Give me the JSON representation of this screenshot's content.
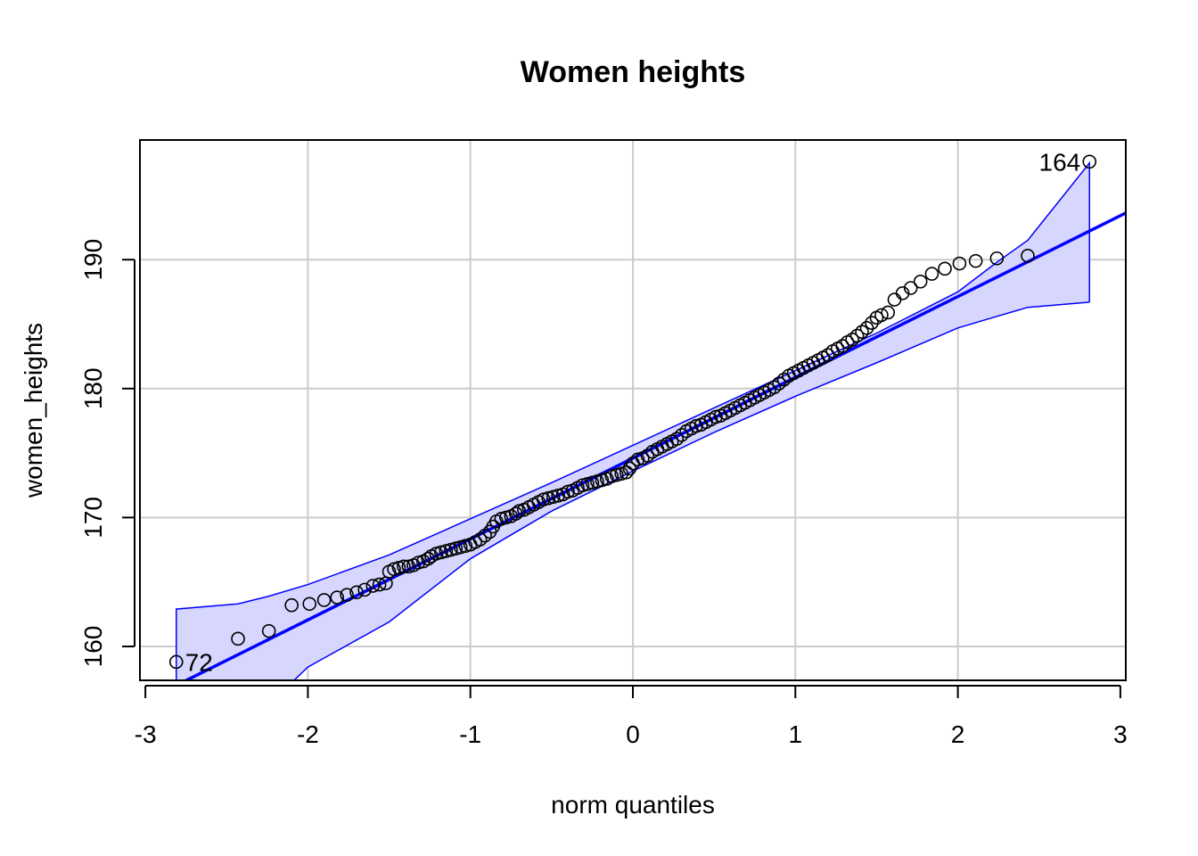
{
  "chart_data": {
    "type": "scatter",
    "title": "Women heights",
    "xlabel": "norm quantiles",
    "ylabel": "women_heights",
    "xlim": [
      -3,
      3
    ],
    "ylim": [
      157.5,
      198.5
    ],
    "x_ticks": [
      -3,
      -2,
      -1,
      0,
      1,
      2,
      3
    ],
    "y_ticks": [
      160,
      170,
      180,
      190
    ],
    "grid": true,
    "colors": {
      "points": "#000000",
      "line": "#0000ff",
      "band_fill": "#d6d6ff",
      "band_edge": "#0000ff",
      "grid": "#cccccc"
    },
    "reference_line": {
      "intercept": 174.6,
      "slope": 6.27
    },
    "confidence_band": {
      "x": [
        -2.81,
        -2.43,
        -2.24,
        -2.0,
        -1.5,
        -1.0,
        -0.5,
        0.0,
        0.5,
        1.0,
        1.5,
        2.0,
        2.24,
        2.43,
        2.81
      ],
      "upper": [
        162.9,
        163.3,
        163.9,
        164.8,
        167.1,
        169.9,
        172.7,
        175.6,
        178.5,
        181.4,
        184.3,
        187.5,
        189.8,
        191.5,
        197.5
      ],
      "lower": [
        148.5,
        150.7,
        155.5,
        158.4,
        161.9,
        166.8,
        170.5,
        173.6,
        176.6,
        179.4,
        182.0,
        184.7,
        185.6,
        186.3,
        186.7
      ]
    },
    "annotations": [
      {
        "label": "72",
        "x": -2.81,
        "y": 158.8,
        "anchor": "start"
      },
      {
        "label": "164",
        "x": 2.81,
        "y": 197.6,
        "anchor": "end"
      }
    ],
    "points": [
      [
        -2.81,
        158.8
      ],
      [
        -2.43,
        160.6
      ],
      [
        -2.24,
        161.2
      ],
      [
        -2.1,
        163.2
      ],
      [
        -1.99,
        163.3
      ],
      [
        -1.9,
        163.6
      ],
      [
        -1.82,
        163.8
      ],
      [
        -1.76,
        164.0
      ],
      [
        -1.7,
        164.2
      ],
      [
        -1.65,
        164.4
      ],
      [
        -1.6,
        164.7
      ],
      [
        -1.56,
        164.8
      ],
      [
        -1.52,
        164.9
      ],
      [
        -1.5,
        165.8
      ],
      [
        -1.47,
        166.0
      ],
      [
        -1.44,
        166.1
      ],
      [
        -1.41,
        166.2
      ],
      [
        -1.38,
        166.2
      ],
      [
        -1.35,
        166.3
      ],
      [
        -1.32,
        166.5
      ],
      [
        -1.29,
        166.6
      ],
      [
        -1.26,
        166.8
      ],
      [
        -1.24,
        167.0
      ],
      [
        -1.21,
        167.2
      ],
      [
        -1.18,
        167.3
      ],
      [
        -1.15,
        167.4
      ],
      [
        -1.12,
        167.5
      ],
      [
        -1.09,
        167.6
      ],
      [
        -1.06,
        167.7
      ],
      [
        -1.03,
        167.8
      ],
      [
        -1.0,
        167.9
      ],
      [
        -0.97,
        168.1
      ],
      [
        -0.94,
        168.3
      ],
      [
        -0.91,
        168.6
      ],
      [
        -0.88,
        168.9
      ],
      [
        -0.86,
        169.3
      ],
      [
        -0.84,
        169.7
      ],
      [
        -0.81,
        169.9
      ],
      [
        -0.78,
        170.0
      ],
      [
        -0.75,
        170.1
      ],
      [
        -0.72,
        170.3
      ],
      [
        -0.7,
        170.5
      ],
      [
        -0.67,
        170.6
      ],
      [
        -0.64,
        170.8
      ],
      [
        -0.61,
        171.0
      ],
      [
        -0.58,
        171.2
      ],
      [
        -0.55,
        171.4
      ],
      [
        -0.52,
        171.5
      ],
      [
        -0.49,
        171.6
      ],
      [
        -0.46,
        171.7
      ],
      [
        -0.43,
        171.8
      ],
      [
        -0.4,
        172.0
      ],
      [
        -0.37,
        172.1
      ],
      [
        -0.34,
        172.3
      ],
      [
        -0.31,
        172.5
      ],
      [
        -0.28,
        172.6
      ],
      [
        -0.25,
        172.7
      ],
      [
        -0.22,
        172.8
      ],
      [
        -0.19,
        172.9
      ],
      [
        -0.16,
        173.0
      ],
      [
        -0.13,
        173.2
      ],
      [
        -0.1,
        173.3
      ],
      [
        -0.07,
        173.4
      ],
      [
        -0.04,
        173.5
      ],
      [
        -0.02,
        173.8
      ],
      [
        0.0,
        174.2
      ],
      [
        0.03,
        174.5
      ],
      [
        0.06,
        174.6
      ],
      [
        0.09,
        174.8
      ],
      [
        0.12,
        175.1
      ],
      [
        0.15,
        175.3
      ],
      [
        0.18,
        175.5
      ],
      [
        0.21,
        175.7
      ],
      [
        0.24,
        175.9
      ],
      [
        0.27,
        176.1
      ],
      [
        0.3,
        176.4
      ],
      [
        0.33,
        176.7
      ],
      [
        0.36,
        176.9
      ],
      [
        0.39,
        177.1
      ],
      [
        0.42,
        177.2
      ],
      [
        0.45,
        177.4
      ],
      [
        0.48,
        177.6
      ],
      [
        0.51,
        177.8
      ],
      [
        0.54,
        177.9
      ],
      [
        0.57,
        178.1
      ],
      [
        0.6,
        178.3
      ],
      [
        0.63,
        178.5
      ],
      [
        0.66,
        178.7
      ],
      [
        0.69,
        178.9
      ],
      [
        0.72,
        179.1
      ],
      [
        0.75,
        179.3
      ],
      [
        0.78,
        179.5
      ],
      [
        0.81,
        179.7
      ],
      [
        0.84,
        179.9
      ],
      [
        0.87,
        180.1
      ],
      [
        0.9,
        180.4
      ],
      [
        0.93,
        180.7
      ],
      [
        0.96,
        181.0
      ],
      [
        0.99,
        181.2
      ],
      [
        1.02,
        181.4
      ],
      [
        1.05,
        181.6
      ],
      [
        1.08,
        181.8
      ],
      [
        1.11,
        182.0
      ],
      [
        1.14,
        182.2
      ],
      [
        1.17,
        182.4
      ],
      [
        1.2,
        182.6
      ],
      [
        1.23,
        182.9
      ],
      [
        1.26,
        183.1
      ],
      [
        1.29,
        183.3
      ],
      [
        1.32,
        183.6
      ],
      [
        1.35,
        183.8
      ],
      [
        1.38,
        184.1
      ],
      [
        1.41,
        184.4
      ],
      [
        1.44,
        184.7
      ],
      [
        1.47,
        185.1
      ],
      [
        1.5,
        185.5
      ],
      [
        1.53,
        185.7
      ],
      [
        1.57,
        185.9
      ],
      [
        1.61,
        186.9
      ],
      [
        1.66,
        187.4
      ],
      [
        1.71,
        187.8
      ],
      [
        1.77,
        188.3
      ],
      [
        1.84,
        188.9
      ],
      [
        1.92,
        189.3
      ],
      [
        2.01,
        189.7
      ],
      [
        2.11,
        189.9
      ],
      [
        2.24,
        190.1
      ],
      [
        2.43,
        190.3
      ],
      [
        2.81,
        197.6
      ]
    ]
  }
}
